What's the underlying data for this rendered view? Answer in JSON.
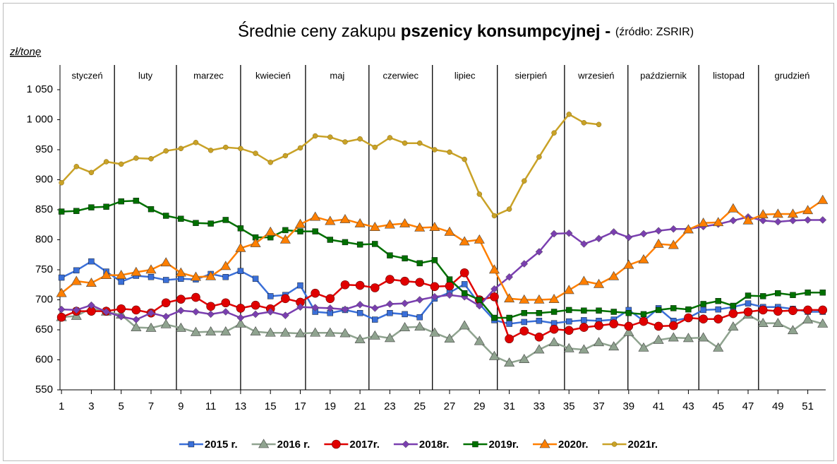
{
  "chart_data": {
    "type": "line",
    "title": "Średnie ceny zakupu",
    "title_bold": "pszenicy konsumpcyjnej -",
    "subtitle": "(źródło: ZSRIR)",
    "y_label": "zł/tonę",
    "x": [
      1,
      2,
      3,
      4,
      5,
      6,
      7,
      8,
      9,
      10,
      11,
      12,
      13,
      14,
      15,
      16,
      17,
      18,
      19,
      20,
      21,
      22,
      23,
      24,
      25,
      26,
      27,
      28,
      29,
      30,
      31,
      32,
      33,
      34,
      35,
      36,
      37,
      38,
      39,
      40,
      41,
      42,
      43,
      44,
      45,
      46,
      47,
      48,
      49,
      50,
      51,
      52
    ],
    "xlim": [
      0.9,
      52.2
    ],
    "xticks": [
      1,
      3,
      5,
      7,
      9,
      11,
      13,
      15,
      17,
      19,
      21,
      23,
      25,
      27,
      29,
      31,
      33,
      35,
      37,
      39,
      41,
      43,
      45,
      47,
      49,
      51
    ],
    "ylim": [
      550,
      1050
    ],
    "yticks": [
      550,
      600,
      650,
      700,
      750,
      800,
      850,
      900,
      950,
      {
        "value": 1000,
        "label": "1 000"
      },
      {
        "value": 1050,
        "label": "1 050"
      }
    ],
    "months": [
      "styczeń",
      "luty",
      "marzec",
      "kwiecień",
      "maj",
      "czerwiec",
      "lipiec",
      "sierpień",
      "wrzesień",
      "październik",
      "listopad",
      "grudzień"
    ],
    "month_dividers": [
      4.55,
      8.7,
      13.0,
      17.35,
      21.6,
      25.85,
      30.2,
      34.7,
      38.95,
      43.7,
      47.7
    ],
    "series": [
      {
        "name": "2015 r.",
        "color": "#3a6fd8",
        "marker": "square",
        "values": [
          737,
          749,
          764,
          747,
          730,
          740,
          738,
          733,
          735,
          734,
          743,
          738,
          748,
          735,
          706,
          708,
          724,
          680,
          678,
          683,
          678,
          667,
          678,
          676,
          671,
          702,
          712,
          726,
          693,
          666,
          660,
          663,
          665,
          661,
          664,
          666,
          665,
          667,
          683,
          665,
          686,
          665,
          670,
          683,
          684,
          688,
          694,
          688,
          688,
          685,
          680,
          680
        ]
      },
      {
        "name": "2016 r.",
        "color": "#8fa38f",
        "marker": "triangle",
        "values": [
          671,
          673,
          686,
          680,
          675,
          654,
          653,
          659,
          653,
          646,
          647,
          647,
          660,
          647,
          645,
          645,
          644,
          645,
          645,
          644,
          634,
          640,
          636,
          654,
          655,
          645,
          635,
          657,
          631,
          606,
          595,
          601,
          617,
          629,
          619,
          617,
          629,
          622,
          646,
          620,
          633,
          637,
          636,
          637,
          620,
          655,
          675,
          661,
          661,
          649,
          667,
          660
        ]
      },
      {
        "name": "2017r.",
        "color": "#e00000",
        "marker": "circle",
        "values": [
          671,
          681,
          681,
          681,
          685,
          683,
          678,
          695,
          701,
          704,
          689,
          695,
          686,
          691,
          685,
          702,
          696,
          711,
          702,
          725,
          724,
          720,
          734,
          731,
          729,
          722,
          723,
          745,
          700,
          705,
          635,
          648,
          638,
          651,
          649,
          654,
          657,
          660,
          656,
          664,
          656,
          657,
          670,
          668,
          668,
          677,
          680,
          683,
          681,
          682,
          683,
          683
        ]
      },
      {
        "name": "2018r.",
        "color": "#7a3fb0",
        "marker": "diamond",
        "values": [
          684,
          683,
          691,
          680,
          672,
          667,
          678,
          672,
          682,
          680,
          676,
          680,
          670,
          676,
          680,
          674,
          688,
          687,
          686,
          684,
          692,
          686,
          693,
          694,
          700,
          705,
          708,
          705,
          690,
          718,
          738,
          760,
          780,
          810,
          811,
          793,
          802,
          813,
          804,
          810,
          815,
          818,
          818,
          822,
          826,
          832,
          838,
          832,
          830,
          832,
          833,
          833
        ]
      },
      {
        "name": "2019r.",
        "color": "#007000",
        "marker": "square",
        "values": [
          847,
          848,
          854,
          855,
          864,
          865,
          851,
          840,
          835,
          828,
          827,
          833,
          819,
          804,
          804,
          816,
          814,
          814,
          800,
          796,
          792,
          793,
          774,
          769,
          761,
          766,
          734,
          711,
          700,
          670,
          670,
          678,
          678,
          680,
          683,
          682,
          682,
          680,
          678,
          676,
          683,
          686,
          684,
          693,
          698,
          690,
          707,
          706,
          711,
          708,
          712,
          712
        ]
      },
      {
        "name": "2020r.",
        "color": "#ff7f00",
        "marker": "triangle",
        "values": [
          711,
          731,
          728,
          741,
          741,
          746,
          750,
          762,
          745,
          738,
          739,
          756,
          786,
          794,
          813,
          800,
          826,
          838,
          831,
          834,
          827,
          821,
          825,
          827,
          820,
          821,
          813,
          797,
          800,
          750,
          702,
          700,
          700,
          701,
          716,
          731,
          726,
          739,
          758,
          767,
          793,
          791,
          817,
          828,
          829,
          852,
          832,
          842,
          843,
          843,
          849,
          866
        ]
      },
      {
        "name": "2021r.",
        "color": "#c9a227",
        "marker": "dot",
        "values": [
          895,
          922,
          912,
          930,
          926,
          936,
          935,
          948,
          952,
          962,
          949,
          954,
          952,
          944,
          929,
          940,
          953,
          973,
          971,
          963,
          968,
          954,
          970,
          961,
          961,
          950,
          946,
          934,
          876,
          840,
          851,
          898,
          938,
          978,
          1009,
          995,
          992,
          null,
          null,
          null,
          null,
          null,
          null,
          null,
          null,
          null,
          null,
          null,
          null,
          null,
          null,
          null
        ]
      }
    ]
  }
}
